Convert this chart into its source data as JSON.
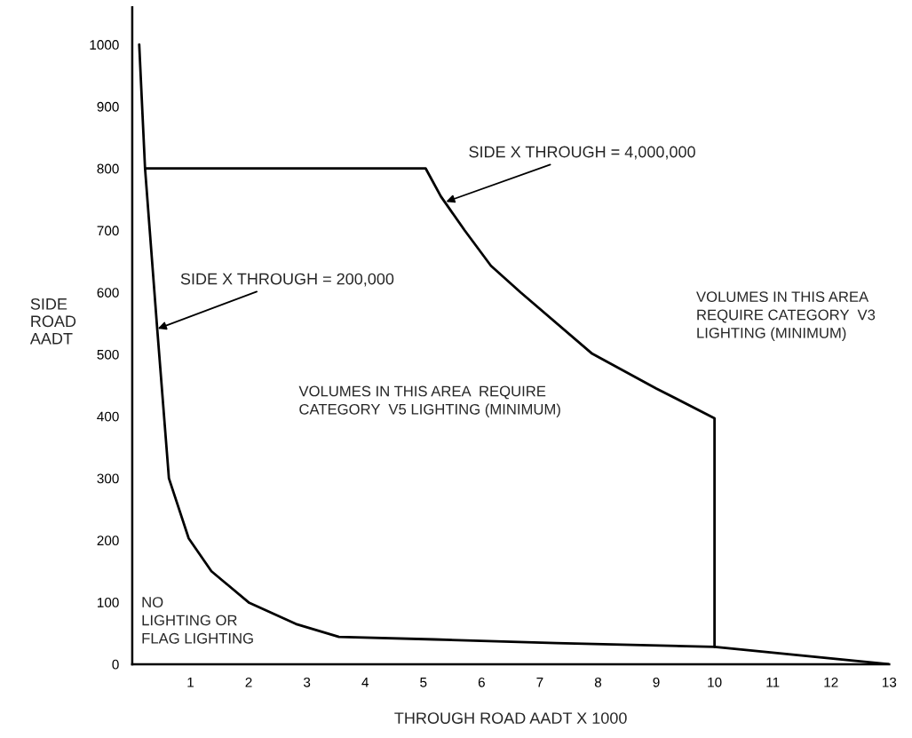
{
  "chart_data": {
    "type": "line",
    "xlabel": "THROUGH ROAD AADT X 1000",
    "ylabel": "SIDE\nROAD\nAADT",
    "xlim": [
      0,
      13
    ],
    "xticks": [
      1,
      2,
      3,
      4,
      5,
      6,
      7,
      8,
      9,
      10,
      11,
      12,
      13
    ],
    "ylim": [
      0,
      1060
    ],
    "yticks": [
      0,
      100,
      200,
      300,
      400,
      500,
      600,
      700,
      800,
      900,
      1000
    ],
    "grid": false,
    "legend": false,
    "marker": "none",
    "line_style": "solid",
    "series": [
      {
        "color": "#000000",
        "x": [
          0.12,
          0.22,
          0.43,
          0.63,
          0.97,
          1.36,
          2.01,
          2.81,
          3.55,
          5.19,
          7.28,
          10,
          13
        ],
        "values": [
          1000,
          800,
          540,
          300,
          203,
          150,
          99,
          65,
          44,
          40,
          34,
          28,
          0
        ]
      },
      {
        "color": "#000000",
        "x": [
          0.22,
          5.04,
          5.3,
          5.71,
          6.16,
          6.67,
          7.9,
          9.0,
          10.0,
          10.0
        ],
        "values": [
          800,
          800,
          755,
          700,
          643,
          600,
          501,
          445,
          397,
          28
        ]
      }
    ],
    "annotations": [
      {
        "text": "SIDE X THROUGH = 200,000",
        "x": 0.4,
        "y": 540
      },
      {
        "text": "SIDE X THROUGH = 4,000,000",
        "x": 5.35,
        "y": 745
      },
      "VOLUMES IN THIS AREA  REQUIRE\nCATEGORY  V5 LIGHTING (MINIMUM)",
      "VOLUMES IN THIS AREA\nREQUIRE CATEGORY  V3\nLIGHTING (MINIMUM)",
      "NO\nLIGHTING OR\nFLAG LIGHTING"
    ]
  }
}
